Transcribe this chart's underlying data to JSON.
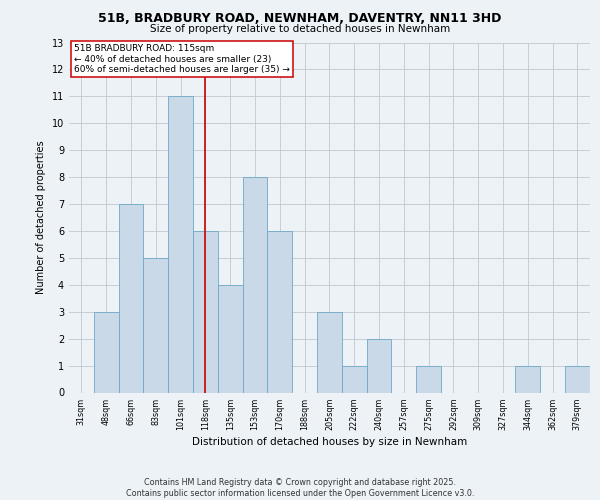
{
  "title_line1": "51B, BRADBURY ROAD, NEWNHAM, DAVENTRY, NN11 3HD",
  "title_line2": "Size of property relative to detached houses in Newnham",
  "xlabel": "Distribution of detached houses by size in Newnham",
  "ylabel": "Number of detached properties",
  "categories": [
    "31sqm",
    "48sqm",
    "66sqm",
    "83sqm",
    "101sqm",
    "118sqm",
    "135sqm",
    "153sqm",
    "170sqm",
    "188sqm",
    "205sqm",
    "222sqm",
    "240sqm",
    "257sqm",
    "275sqm",
    "292sqm",
    "309sqm",
    "327sqm",
    "344sqm",
    "362sqm",
    "379sqm"
  ],
  "values": [
    0,
    3,
    7,
    5,
    11,
    6,
    4,
    8,
    6,
    0,
    3,
    1,
    2,
    0,
    1,
    0,
    0,
    0,
    1,
    0,
    1
  ],
  "bar_color": "#c9d9e8",
  "bar_edge_color": "#6fa8c8",
  "grid_color": "#c0c8d0",
  "vline_x_index": 5,
  "vline_color": "#cc0000",
  "annotation_text": "51B BRADBURY ROAD: 115sqm\n← 40% of detached houses are smaller (23)\n60% of semi-detached houses are larger (35) →",
  "annotation_box_color": "#ffffff",
  "annotation_box_edge": "#cc0000",
  "annotation_fontsize": 6.5,
  "ylim": [
    0,
    13
  ],
  "yticks": [
    0,
    1,
    2,
    3,
    4,
    5,
    6,
    7,
    8,
    9,
    10,
    11,
    12,
    13
  ],
  "footer_text": "Contains HM Land Registry data © Crown copyright and database right 2025.\nContains public sector information licensed under the Open Government Licence v3.0.",
  "background_color": "#edf2f7"
}
